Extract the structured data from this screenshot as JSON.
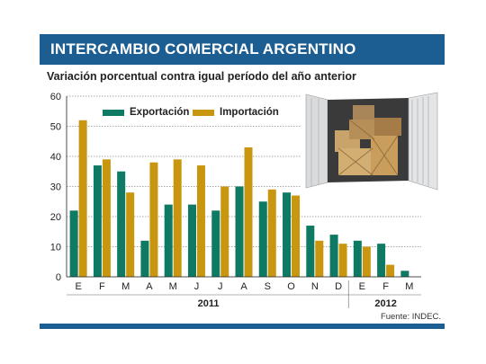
{
  "header": {
    "title": "INTERCAMBIO COMERCIAL ARGENTINO"
  },
  "subtitle": "Variación porcentual contra igual período del año anterior",
  "source": "Fuente: INDEC.",
  "colors": {
    "export": "#0e7a63",
    "import": "#c9960f",
    "header": "#1d5e92"
  },
  "chart_data": {
    "type": "bar",
    "categories": [
      "E",
      "F",
      "M",
      "A",
      "M",
      "J",
      "J",
      "A",
      "S",
      "O",
      "N",
      "D",
      "E",
      "F",
      "M"
    ],
    "years": [
      {
        "label": "2011",
        "span": [
          0,
          11
        ]
      },
      {
        "label": "2012",
        "span": [
          12,
          14
        ]
      }
    ],
    "series": [
      {
        "name": "Exportación",
        "color": "#0e7a63",
        "values": [
          22,
          37,
          35,
          12,
          24,
          24,
          22,
          30,
          25,
          28,
          17,
          14,
          12,
          11,
          2
        ]
      },
      {
        "name": "Importación",
        "color": "#c9960f",
        "values": [
          52,
          39,
          28,
          38,
          39,
          37,
          30,
          43,
          29,
          27,
          12,
          11,
          10,
          4,
          null
        ]
      }
    ],
    "ylim": [
      0,
      60
    ],
    "yticks": [
      0,
      10,
      20,
      30,
      40,
      50,
      60
    ],
    "grid": true,
    "legend_position": "top-left"
  }
}
